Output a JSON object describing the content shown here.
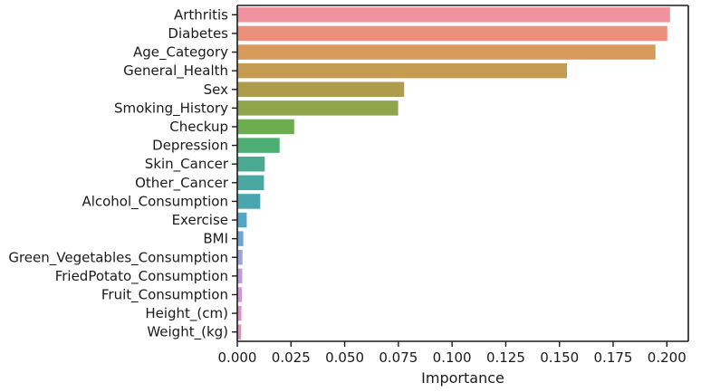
{
  "chart_data": {
    "type": "bar",
    "orientation": "horizontal",
    "title": "",
    "xlabel": "Importance",
    "ylabel": "",
    "xlim": [
      0,
      0.21
    ],
    "xticks": [
      "0.000",
      "0.025",
      "0.050",
      "0.075",
      "0.100",
      "0.125",
      "0.150",
      "0.175",
      "0.200"
    ],
    "grid": false,
    "categories": [
      "Arthritis",
      "Diabetes",
      "Age_Category",
      "General_Health",
      "Sex",
      "Smoking_History",
      "Checkup",
      "Depression",
      "Skin_Cancer",
      "Other_Cancer",
      "Alcohol_Consumption",
      "Exercise",
      "BMI",
      "Green_Vegetables_Consumption",
      "FriedPotato_Consumption",
      "Fruit_Consumption",
      "Height_(cm)",
      "Weight_(kg)"
    ],
    "values": [
      0.2015,
      0.2002,
      0.1947,
      0.1535,
      0.0777,
      0.0749,
      0.0265,
      0.0197,
      0.0128,
      0.0124,
      0.0107,
      0.0044,
      0.0028,
      0.0024,
      0.0023,
      0.0021,
      0.0019,
      0.0018
    ],
    "colors": [
      "#f0939f",
      "#ea917c",
      "#d69a5b",
      "#c49b51",
      "#ad9d4b",
      "#90a64c",
      "#6cae4f",
      "#4cae73",
      "#4ba992",
      "#4aa8a2",
      "#4aa6ae",
      "#51a6c3",
      "#6ea5d9",
      "#9aa2e0",
      "#ba9be0",
      "#d595dc",
      "#e08ec9",
      "#e48db2"
    ]
  }
}
